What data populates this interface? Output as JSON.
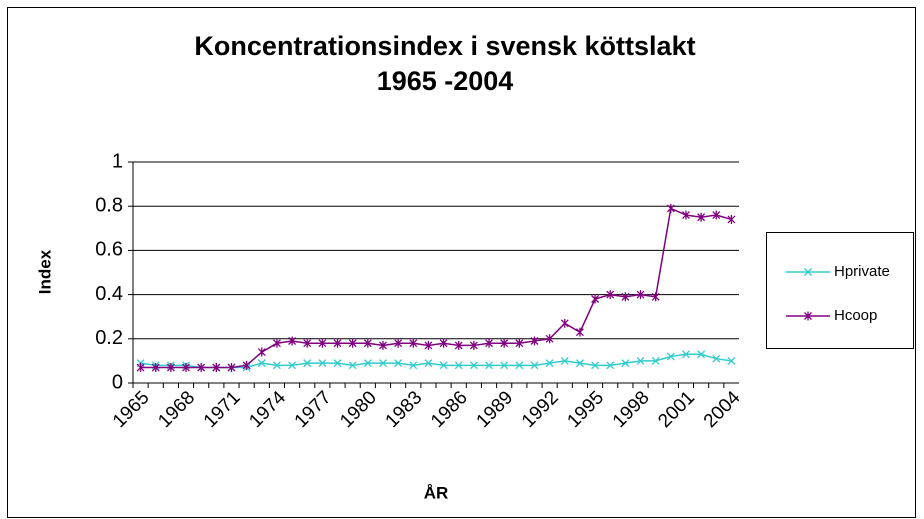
{
  "chart_data": {
    "type": "line",
    "title_lines": [
      "Koncentrationsindex i svensk köttslakt",
      "1965 -2004"
    ],
    "x_label": "ÅR",
    "y_label": "Index",
    "categories": [
      "1965",
      null,
      null,
      "1968",
      null,
      null,
      "1971",
      null,
      null,
      "1974",
      null,
      null,
      "1977",
      null,
      null,
      "1980",
      null,
      null,
      "1983",
      null,
      null,
      "1986",
      null,
      null,
      "1989",
      null,
      null,
      "1992",
      null,
      null,
      "1995",
      null,
      null,
      "1998",
      null,
      null,
      "2001",
      null,
      null,
      "2004"
    ],
    "series": [
      {
        "name": "Hprivate",
        "color": "#33cccc",
        "marker": "x",
        "values": [
          0.09,
          0.08,
          0.08,
          0.08,
          0.07,
          0.07,
          0.07,
          0.07,
          0.09,
          0.08,
          0.08,
          0.09,
          0.09,
          0.09,
          0.08,
          0.09,
          0.09,
          0.09,
          0.08,
          0.09,
          0.08,
          0.08,
          0.08,
          0.08,
          0.08,
          0.08,
          0.08,
          0.09,
          0.1,
          0.09,
          0.08,
          0.08,
          0.09,
          0.1,
          0.1,
          0.12,
          0.13,
          0.13,
          0.11,
          0.1
        ]
      },
      {
        "name": "Hcoop",
        "color": "#800080",
        "marker": "star",
        "values": [
          0.07,
          0.07,
          0.07,
          0.07,
          0.07,
          0.07,
          0.07,
          0.08,
          0.14,
          0.18,
          0.19,
          0.18,
          0.18,
          0.18,
          0.18,
          0.18,
          0.17,
          0.18,
          0.18,
          0.17,
          0.18,
          0.17,
          0.17,
          0.18,
          0.18,
          0.18,
          0.19,
          0.2,
          0.27,
          0.23,
          0.38,
          0.4,
          0.39,
          0.4,
          0.39,
          0.79,
          0.76,
          0.75,
          0.76,
          0.74
        ]
      }
    ],
    "ylim": [
      0,
      1
    ],
    "yticks": [
      0,
      0.2,
      0.4,
      0.6,
      0.8,
      1
    ],
    "grid": true,
    "legend": "right"
  }
}
